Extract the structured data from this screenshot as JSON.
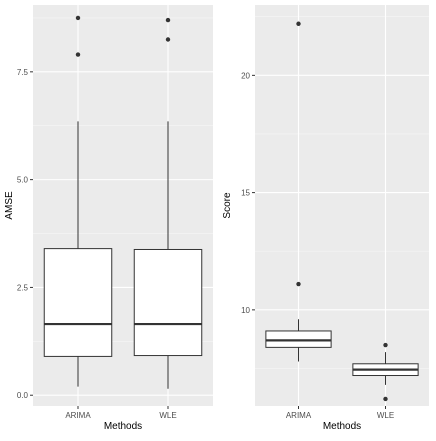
{
  "chart_data": [
    {
      "type": "boxplot",
      "xlabel": "Methods",
      "ylabel": "AMSE",
      "categories": [
        "ARIMA",
        "WLE"
      ],
      "ylim": [
        -0.25,
        9.05
      ],
      "yticks": [
        0.0,
        2.5,
        5.0,
        7.5
      ],
      "ytick_labels": [
        "0.0",
        "2.5",
        "5.0",
        "7.5"
      ],
      "grid": true,
      "boxes": [
        {
          "category": "ARIMA",
          "whisker_low": 0.2,
          "q1": 0.9,
          "median": 1.65,
          "q3": 3.4,
          "whisker_high": 6.35,
          "outliers": [
            7.9,
            8.75
          ]
        },
        {
          "category": "WLE",
          "whisker_low": 0.15,
          "q1": 0.92,
          "median": 1.65,
          "q3": 3.38,
          "whisker_high": 6.35,
          "outliers": [
            8.25,
            8.7
          ]
        }
      ]
    },
    {
      "type": "boxplot",
      "xlabel": "Methods",
      "ylabel": "Score",
      "categories": [
        "ARIMA",
        "WLE"
      ],
      "ylim": [
        5.9,
        23.0
      ],
      "yticks": [
        10,
        15,
        20
      ],
      "ytick_labels": [
        "10",
        "15",
        "20"
      ],
      "grid": true,
      "boxes": [
        {
          "category": "ARIMA",
          "whisker_low": 7.8,
          "q1": 8.4,
          "median": 8.7,
          "q3": 9.1,
          "whisker_high": 9.6,
          "outliers": [
            11.1,
            22.2
          ]
        },
        {
          "category": "WLE",
          "whisker_low": 6.8,
          "q1": 7.2,
          "median": 7.45,
          "q3": 7.7,
          "whisker_high": 8.2,
          "outliers": [
            6.2,
            8.5
          ]
        }
      ]
    }
  ]
}
